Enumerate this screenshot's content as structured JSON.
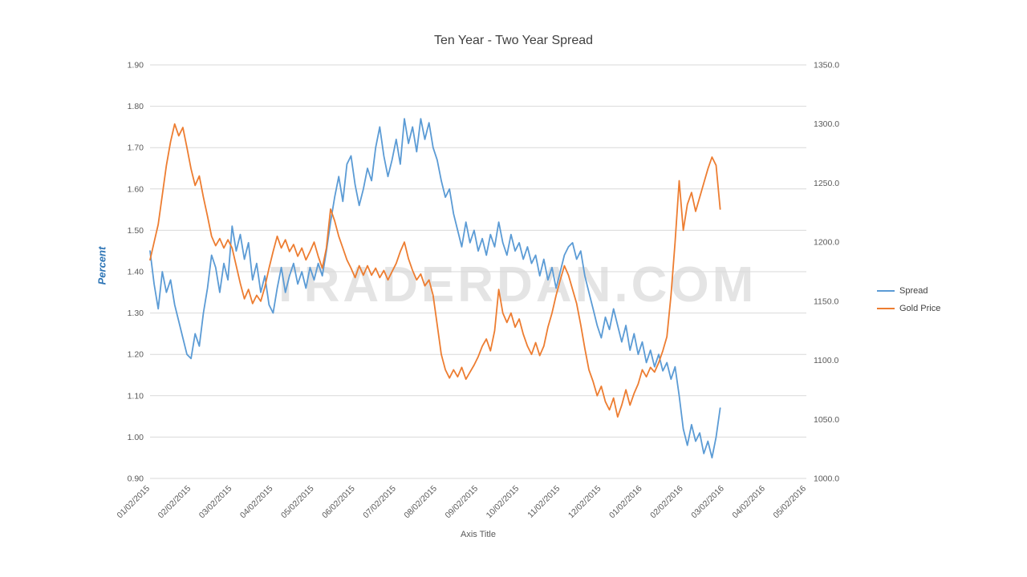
{
  "watermark": "TRADERDAN.COM",
  "chart_data": {
    "type": "line",
    "title": "Ten Year - Two Year Spread",
    "xlabel": "Axis Title",
    "ylabel_left": "Percent",
    "grid": true,
    "legend_position": "right",
    "left_axis": {
      "min": 0.9,
      "max": 1.9,
      "step": 0.1,
      "tick_labels": [
        "0.90",
        "1.00",
        "1.10",
        "1.20",
        "1.30",
        "1.40",
        "1.50",
        "1.60",
        "1.70",
        "1.80",
        "1.90"
      ]
    },
    "right_axis": {
      "min": 1000.0,
      "max": 1350.0,
      "step": 50.0,
      "tick_labels": [
        "1000.0",
        "1050.0",
        "1100.0",
        "1150.0",
        "1200.0",
        "1250.0",
        "1300.0",
        "1350.0"
      ]
    },
    "x_axis": {
      "span": 16,
      "start": 0,
      "step": 0.1,
      "unit": "months after 01/02/2015",
      "tick_labels": [
        "01/02/2015",
        "02/02/2015",
        "03/02/2015",
        "04/02/2015",
        "05/02/2015",
        "06/02/2015",
        "07/02/2015",
        "08/02/2015",
        "09/02/2015",
        "10/02/2015",
        "11/02/2015",
        "12/02/2015",
        "01/02/2016",
        "02/02/2016",
        "03/02/2016",
        "04/02/2016",
        "05/02/2016"
      ]
    },
    "series": [
      {
        "name": "Spread",
        "color": "#5B9BD5",
        "axis": "left",
        "values": [
          1.45,
          1.37,
          1.31,
          1.4,
          1.35,
          1.38,
          1.32,
          1.28,
          1.24,
          1.2,
          1.19,
          1.25,
          1.22,
          1.3,
          1.36,
          1.44,
          1.41,
          1.35,
          1.42,
          1.38,
          1.51,
          1.45,
          1.49,
          1.43,
          1.47,
          1.38,
          1.42,
          1.35,
          1.39,
          1.32,
          1.3,
          1.36,
          1.41,
          1.35,
          1.39,
          1.42,
          1.37,
          1.4,
          1.36,
          1.41,
          1.38,
          1.42,
          1.39,
          1.45,
          1.52,
          1.58,
          1.63,
          1.57,
          1.66,
          1.68,
          1.61,
          1.56,
          1.6,
          1.65,
          1.62,
          1.7,
          1.75,
          1.68,
          1.63,
          1.67,
          1.72,
          1.66,
          1.77,
          1.71,
          1.75,
          1.69,
          1.77,
          1.72,
          1.76,
          1.7,
          1.67,
          1.62,
          1.58,
          1.6,
          1.54,
          1.5,
          1.46,
          1.52,
          1.47,
          1.5,
          1.45,
          1.48,
          1.44,
          1.49,
          1.46,
          1.52,
          1.47,
          1.44,
          1.49,
          1.45,
          1.47,
          1.43,
          1.46,
          1.42,
          1.44,
          1.39,
          1.43,
          1.38,
          1.41,
          1.36,
          1.4,
          1.44,
          1.46,
          1.47,
          1.43,
          1.45,
          1.39,
          1.35,
          1.31,
          1.27,
          1.24,
          1.29,
          1.26,
          1.31,
          1.27,
          1.23,
          1.27,
          1.21,
          1.25,
          1.2,
          1.23,
          1.18,
          1.21,
          1.17,
          1.2,
          1.16,
          1.18,
          1.14,
          1.17,
          1.1,
          1.02,
          0.98,
          1.03,
          0.99,
          1.01,
          0.96,
          0.99,
          0.95,
          1.0,
          1.07
        ]
      },
      {
        "name": "Gold Price",
        "color": "#ED7D31",
        "axis": "right",
        "values": [
          1185,
          1200,
          1215,
          1240,
          1265,
          1285,
          1300,
          1290,
          1297,
          1280,
          1262,
          1248,
          1256,
          1238,
          1222,
          1205,
          1197,
          1203,
          1195,
          1202,
          1195,
          1180,
          1165,
          1152,
          1160,
          1148,
          1155,
          1150,
          1162,
          1178,
          1192,
          1205,
          1195,
          1202,
          1192,
          1198,
          1188,
          1195,
          1185,
          1192,
          1200,
          1188,
          1178,
          1195,
          1228,
          1218,
          1205,
          1195,
          1185,
          1178,
          1170,
          1180,
          1172,
          1180,
          1172,
          1178,
          1170,
          1176,
          1168,
          1175,
          1182,
          1192,
          1200,
          1186,
          1176,
          1168,
          1173,
          1163,
          1168,
          1155,
          1130,
          1105,
          1092,
          1085,
          1092,
          1086,
          1094,
          1084,
          1090,
          1096,
          1103,
          1112,
          1118,
          1108,
          1125,
          1160,
          1140,
          1132,
          1140,
          1128,
          1135,
          1122,
          1112,
          1105,
          1115,
          1104,
          1112,
          1128,
          1140,
          1155,
          1168,
          1180,
          1172,
          1160,
          1148,
          1130,
          1110,
          1092,
          1082,
          1070,
          1078,
          1065,
          1058,
          1068,
          1052,
          1062,
          1075,
          1062,
          1072,
          1080,
          1092,
          1086,
          1094,
          1090,
          1098,
          1108,
          1120,
          1155,
          1200,
          1252,
          1210,
          1232,
          1242,
          1226,
          1238,
          1250,
          1262,
          1272,
          1265,
          1228
        ]
      }
    ]
  }
}
